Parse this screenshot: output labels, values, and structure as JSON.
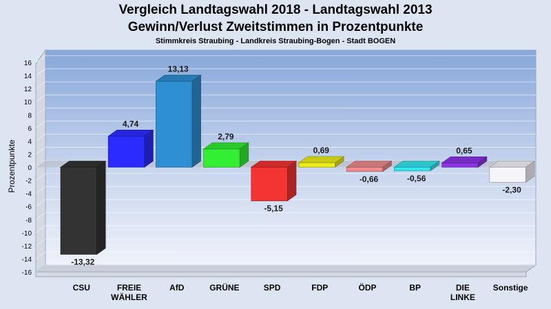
{
  "chart_data": {
    "type": "bar",
    "title": "Vergleich Landtagswahl 2018 - Landtagswahl 2013",
    "subtitle": "Gewinn/Verlust Zweitstimmen in Prozentpunkte",
    "subtitle2": "Stimmkreis Straubing - Landkreis Straubing-Bogen - Stadt BOGEN",
    "xlabel": "",
    "ylabel": "Prozentpunkte",
    "ylim": [
      -16,
      16
    ],
    "yticks": [
      "16",
      "14",
      "12",
      "10",
      "8",
      "6",
      "4",
      "2",
      "0",
      "-2",
      "-4",
      "-6",
      "-8",
      "-10",
      "-12",
      "-14",
      "-16"
    ],
    "categories": [
      [
        "CSU"
      ],
      [
        "FREIE",
        "WÄHLER"
      ],
      [
        "AfD"
      ],
      [
        "GRÜNE"
      ],
      [
        "SPD"
      ],
      [
        "FDP"
      ],
      [
        "ÖDP"
      ],
      [
        "BP"
      ],
      [
        "DIE",
        "LINKE"
      ],
      [
        "Sonstige"
      ]
    ],
    "values": [
      -13.32,
      4.74,
      13.13,
      2.79,
      -5.15,
      0.69,
      -0.66,
      -0.56,
      0.65,
      -2.3
    ],
    "value_labels": [
      "-13,32",
      "4,74",
      "13,13",
      "2,79",
      "-5,15",
      "0,69",
      "-0,66",
      "-0,56",
      "0,65",
      "-2,30"
    ],
    "colors": [
      "#333333",
      "#2b2bff",
      "#2e8fd2",
      "#33ee33",
      "#f43333",
      "#ecec1a",
      "#f08c8c",
      "#33e6ef",
      "#8c33e6",
      "#f5f5fb"
    ],
    "grid": true,
    "legend": "none"
  }
}
